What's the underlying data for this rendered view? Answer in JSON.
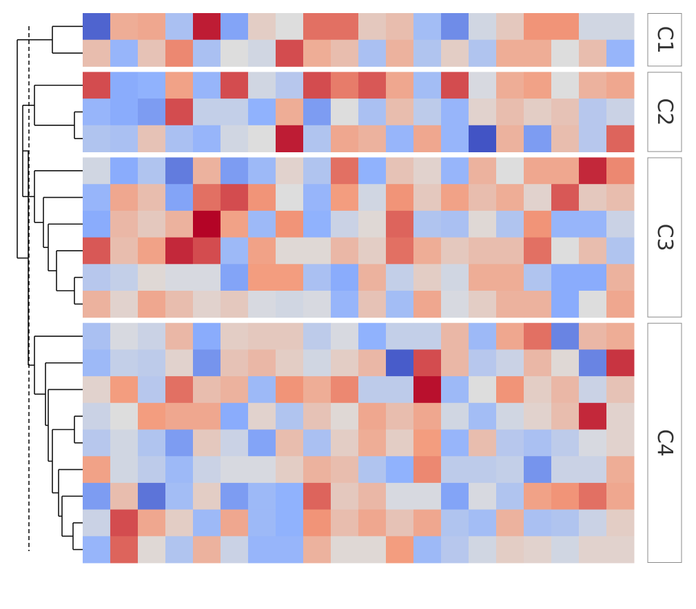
{
  "chart_data": {
    "type": "heatmap",
    "title": "",
    "xlabel": "",
    "ylabel": "",
    "colormap": "coolwarm",
    "value_range": [
      -2.5,
      2.5
    ],
    "n_columns": 20,
    "row_clusters": [
      {
        "label": "C1",
        "rows": 2
      },
      {
        "label": "C2",
        "rows": 3
      },
      {
        "label": "C3",
        "rows": 6
      },
      {
        "label": "C4",
        "rows": 9
      }
    ],
    "values": [
      [
        -2.2,
        0.9,
        1.0,
        -0.8,
        2.3,
        -1.4,
        0.3,
        0.0,
        1.6,
        1.6,
        0.4,
        0.6,
        -0.9,
        -1.7,
        -0.2,
        0.4,
        1.3,
        1.3,
        -0.2,
        -0.2
      ],
      [
        0.6,
        -1.1,
        0.5,
        1.4,
        -0.8,
        0.0,
        -0.2,
        1.9,
        0.9,
        0.6,
        -0.8,
        0.8,
        -0.7,
        0.3,
        -0.7,
        0.9,
        0.9,
        0.0,
        0.6,
        -1.1
      ],
      [
        1.9,
        -1.3,
        -1.2,
        1.1,
        -1.1,
        1.9,
        -0.2,
        -0.6,
        1.9,
        1.5,
        1.8,
        1.0,
        -0.9,
        1.9,
        -0.1,
        0.9,
        1.1,
        0.0,
        0.8,
        1.0
      ],
      [
        -1.1,
        -1.3,
        -1.5,
        1.9,
        -0.4,
        -0.4,
        -1.2,
        0.9,
        -1.5,
        0.0,
        -0.8,
        0.6,
        -0.5,
        -1.1,
        0.2,
        0.6,
        0.3,
        0.5,
        -0.6,
        -0.3
      ],
      [
        -0.7,
        -0.8,
        0.5,
        -0.8,
        -1.1,
        -0.2,
        0.0,
        2.3,
        -0.7,
        1.0,
        0.8,
        -1.1,
        1.0,
        -1.1,
        -2.4,
        0.8,
        -1.5,
        0.6,
        -0.6,
        1.7
      ],
      [
        -0.2,
        -1.3,
        -0.7,
        -1.9,
        0.8,
        -1.5,
        -1.0,
        0.2,
        -0.7,
        1.6,
        -1.2,
        0.5,
        0.2,
        -1.1,
        0.8,
        0.0,
        1.0,
        1.0,
        2.2,
        1.4
      ],
      [
        -1.1,
        1.0,
        0.6,
        -1.4,
        1.6,
        1.9,
        1.3,
        0.0,
        -1.1,
        1.2,
        -0.2,
        1.3,
        0.4,
        1.1,
        0.6,
        0.9,
        0.2,
        1.8,
        0.4,
        0.6
      ],
      [
        -1.3,
        0.7,
        0.4,
        0.8,
        2.5,
        1.1,
        -1.0,
        1.3,
        -1.2,
        -0.3,
        0.1,
        1.7,
        -0.7,
        -0.8,
        0.1,
        -0.7,
        1.3,
        -1.1,
        -1.1,
        -0.3
      ],
      [
        1.8,
        0.6,
        1.1,
        2.2,
        1.9,
        -1.0,
        1.1,
        0.1,
        0.1,
        0.7,
        0.3,
        1.6,
        0.9,
        0.4,
        0.6,
        0.6,
        1.6,
        0.0,
        0.6,
        -0.7
      ],
      [
        -0.6,
        -0.4,
        0.1,
        -0.1,
        -0.1,
        -1.4,
        1.2,
        1.2,
        -0.8,
        -1.3,
        0.8,
        -0.4,
        0.3,
        -0.2,
        0.9,
        0.9,
        -0.7,
        -1.3,
        -1.3,
        0.8
      ],
      [
        0.8,
        0.2,
        1.0,
        0.6,
        0.2,
        0.4,
        -0.1,
        -0.2,
        -0.1,
        -1.1,
        0.5,
        -0.9,
        1.0,
        -0.1,
        0.3,
        0.8,
        0.8,
        -1.3,
        0.0,
        1.0
      ],
      [
        -0.8,
        -0.1,
        -0.3,
        0.7,
        -1.3,
        0.3,
        0.4,
        0.4,
        -0.5,
        -0.1,
        -1.2,
        -0.4,
        -0.4,
        0.7,
        -1.0,
        1.0,
        1.6,
        -1.8,
        0.7,
        0.9
      ],
      [
        -1.0,
        -0.4,
        -0.5,
        0.2,
        -1.6,
        0.5,
        0.7,
        0.3,
        -0.2,
        0.3,
        0.7,
        -2.3,
        1.9,
        0.7,
        -0.6,
        -0.3,
        0.7,
        0.1,
        -1.8,
        2.1
      ],
      [
        0.2,
        1.2,
        -0.6,
        1.6,
        0.6,
        0.8,
        -1.0,
        1.3,
        0.9,
        1.4,
        -0.5,
        -0.5,
        2.4,
        -1.0,
        0.0,
        1.3,
        0.3,
        0.7,
        -0.3,
        0.5
      ],
      [
        -0.3,
        0.0,
        1.2,
        1.0,
        1.0,
        -1.3,
        0.2,
        -0.7,
        0.5,
        0.1,
        1.0,
        0.6,
        1.0,
        -0.2,
        -0.9,
        -0.2,
        0.2,
        0.6,
        2.2,
        0.2
      ],
      [
        -0.6,
        -0.2,
        -0.7,
        -1.5,
        0.4,
        -0.3,
        -1.4,
        0.6,
        -0.8,
        0.3,
        0.9,
        0.3,
        1.2,
        -1.1,
        0.6,
        -0.6,
        -0.8,
        -0.5,
        -0.1,
        0.2
      ],
      [
        1.1,
        -0.2,
        -0.5,
        -1.0,
        -0.3,
        -0.1,
        -0.1,
        0.3,
        0.8,
        0.6,
        -0.7,
        -1.2,
        1.4,
        -0.5,
        -0.5,
        -0.4,
        -1.6,
        -0.3,
        -0.3,
        0.9
      ],
      [
        -1.5,
        0.6,
        -2.0,
        -0.9,
        0.3,
        -1.5,
        -1.0,
        -1.2,
        1.7,
        0.4,
        0.7,
        -0.1,
        -0.1,
        -1.4,
        -0.1,
        -0.7,
        1.1,
        1.3,
        1.6,
        1.0
      ],
      [
        -0.3,
        1.9,
        1.0,
        0.3,
        -1.0,
        1.0,
        -1.0,
        -1.2,
        1.3,
        0.6,
        1.0,
        0.5,
        1.0,
        -0.7,
        -0.9,
        0.8,
        -0.8,
        -0.7,
        -0.3,
        0.3
      ],
      [
        -1.1,
        1.7,
        0.1,
        -0.7,
        0.8,
        -0.3,
        -1.1,
        -1.1,
        0.8,
        0.1,
        0.1,
        1.2,
        -1.0,
        -0.6,
        -0.2,
        0.3,
        0.2,
        -0.2,
        0.2,
        0.2
      ]
    ]
  }
}
